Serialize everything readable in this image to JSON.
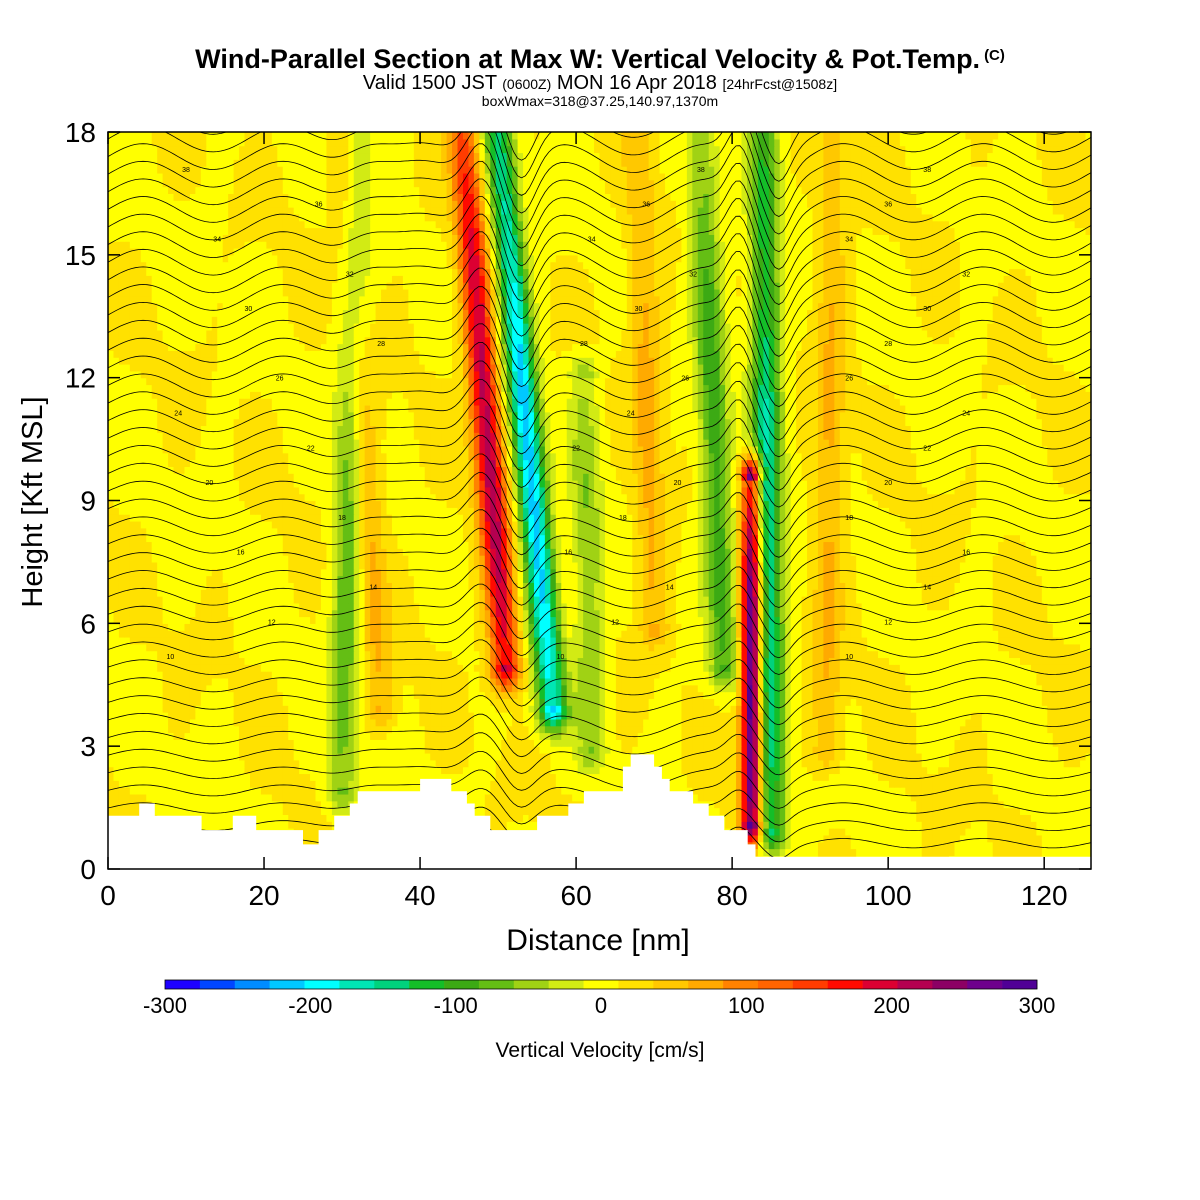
{
  "title": {
    "main": "Wind-Parallel Section at Max W: Vertical Velocity & Pot.Temp.",
    "copyright": "(C)",
    "valid_prefix": "Valid 1500 JST",
    "valid_utc": "(0600Z)",
    "valid_date": "MON 16 Apr 2018",
    "forecast": "[24hrFcst@1508z]",
    "box_info": "boxWmax=318@37.25,140.97,1370m"
  },
  "chart_data": {
    "type": "heatmap",
    "xlabel": "Distance [nm]",
    "ylabel": "Height [Kft MSL]",
    "xlim": [
      0,
      126
    ],
    "ylim": [
      0,
      18
    ],
    "x_ticks": [
      0,
      20,
      40,
      60,
      80,
      100,
      120
    ],
    "y_ticks": [
      0,
      3,
      6,
      9,
      12,
      15,
      18
    ],
    "background_w": 10,
    "updraft_columns": [
      {
        "x_top": 45.5,
        "x_bottom": 51,
        "z_from": 5,
        "z_to": 18,
        "w_max": 210
      },
      {
        "x_top": 82.5,
        "x_bottom": 82.5,
        "z_from": 1.2,
        "z_to": 9.5,
        "w_max": 318
      },
      {
        "x_top": 30,
        "x_bottom": 35,
        "z_from": 4,
        "z_to": 18,
        "w_max": 60
      },
      {
        "x_top": 68,
        "x_bottom": 70,
        "z_from": 6,
        "z_to": 18,
        "w_max": 60
      },
      {
        "x_top": 93,
        "x_bottom": 92,
        "z_from": 3,
        "z_to": 18,
        "w_max": 55
      }
    ],
    "downdraft_columns": [
      {
        "x_top": 50,
        "x_bottom": 57,
        "z_from": 4,
        "z_to": 18,
        "w_min": -230
      },
      {
        "x_top": 84,
        "x_bottom": 85,
        "z_from": 1,
        "z_to": 18,
        "w_min": -170
      },
      {
        "x_top": 32,
        "x_bottom": 30,
        "z_from": 2,
        "z_to": 18,
        "w_min": -90
      },
      {
        "x_top": 76,
        "x_bottom": 79,
        "z_from": 5,
        "z_to": 18,
        "w_min": -110
      },
      {
        "x_top": 61,
        "x_bottom": 62,
        "z_from": 3,
        "z_to": 12,
        "w_min": -70
      }
    ],
    "terrain": [
      [
        0,
        1.3
      ],
      [
        4,
        1.3
      ],
      [
        4,
        1.6
      ],
      [
        6,
        1.6
      ],
      [
        6,
        1.3
      ],
      [
        12,
        1.3
      ],
      [
        12,
        0.95
      ],
      [
        16,
        0.95
      ],
      [
        16,
        1.3
      ],
      [
        19,
        1.3
      ],
      [
        19,
        0.95
      ],
      [
        25,
        0.95
      ],
      [
        25,
        0.6
      ],
      [
        27,
        0.6
      ],
      [
        27,
        0.95
      ],
      [
        29,
        0.95
      ],
      [
        29,
        1.3
      ],
      [
        31,
        1.3
      ],
      [
        31,
        1.6
      ],
      [
        32,
        1.6
      ],
      [
        32,
        1.9
      ],
      [
        40,
        1.9
      ],
      [
        40,
        2.2
      ],
      [
        44,
        2.2
      ],
      [
        44,
        1.9
      ],
      [
        46,
        1.9
      ],
      [
        46,
        1.6
      ],
      [
        47,
        1.6
      ],
      [
        47,
        1.3
      ],
      [
        49,
        1.3
      ],
      [
        49,
        0.95
      ],
      [
        55,
        0.95
      ],
      [
        55,
        1.3
      ],
      [
        59,
        1.3
      ],
      [
        59,
        1.6
      ],
      [
        61,
        1.6
      ],
      [
        61,
        1.9
      ],
      [
        66,
        1.9
      ],
      [
        66,
        2.5
      ],
      [
        67,
        2.5
      ],
      [
        67,
        2.8
      ],
      [
        70,
        2.8
      ],
      [
        70,
        2.5
      ],
      [
        71,
        2.5
      ],
      [
        71,
        2.2
      ],
      [
        72,
        2.2
      ],
      [
        72,
        1.9
      ],
      [
        75,
        1.9
      ],
      [
        75,
        1.6
      ],
      [
        77,
        1.6
      ],
      [
        77,
        1.3
      ],
      [
        79,
        1.3
      ],
      [
        79,
        0.95
      ],
      [
        82,
        0.95
      ],
      [
        82,
        0.6
      ],
      [
        83,
        0.6
      ],
      [
        83,
        0.3
      ],
      [
        126,
        0.3
      ]
    ],
    "isentropes": {
      "levels": [
        2,
        4,
        6,
        8,
        10,
        12,
        14,
        16,
        18,
        20,
        22,
        24,
        26,
        28,
        30,
        32,
        34,
        36,
        38,
        40,
        42,
        44,
        46,
        48,
        50,
        52,
        54,
        56,
        58,
        60,
        62,
        64,
        66,
        68,
        70,
        72,
        74,
        76,
        78,
        80,
        82,
        84
      ],
      "labels": [
        "10",
        "12",
        "14",
        "16",
        "18",
        "20",
        "22",
        "24",
        "26",
        "28",
        "30",
        "32",
        "34",
        "36",
        "38"
      ]
    },
    "colorbar": {
      "label": "Vertical Velocity [cm/s]",
      "ticks": [
        -300,
        -200,
        -100,
        0,
        100,
        200,
        300
      ],
      "colors": [
        "#1e00ff",
        "#0046ff",
        "#008cff",
        "#00c8ff",
        "#00ffff",
        "#00e6b4",
        "#00d27d",
        "#14be28",
        "#3caa14",
        "#64be14",
        "#a0d214",
        "#d2eb14",
        "#ffff00",
        "#ffe100",
        "#ffc800",
        "#ffaa00",
        "#ff8200",
        "#ff6400",
        "#ff3c00",
        "#ff0a00",
        "#dc0032",
        "#b40050",
        "#8c0064",
        "#6e008c",
        "#500096"
      ]
    }
  }
}
